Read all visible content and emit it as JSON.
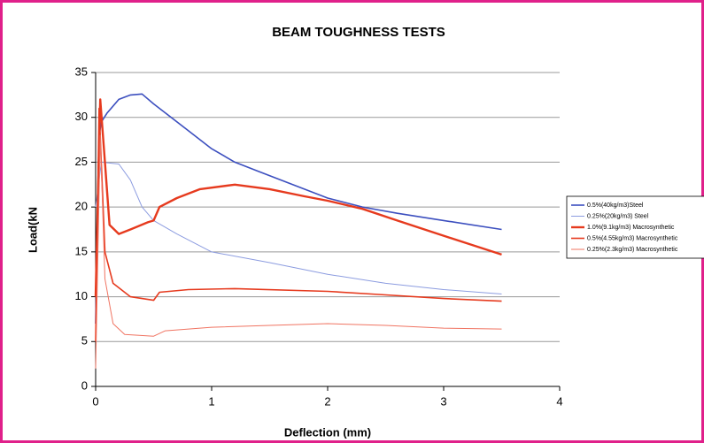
{
  "chart_data": {
    "type": "line",
    "title": "BEAM TOUGHNESS TESTS",
    "x_label": "Deflection (mm)",
    "y_label": "Load(kN",
    "xlim": [
      0,
      4
    ],
    "xticks": [
      0,
      1,
      2,
      3,
      4
    ],
    "ylim": [
      0,
      35
    ],
    "yticks": [
      0,
      5,
      10,
      15,
      20,
      25,
      30,
      35
    ],
    "grid": true,
    "legend": "right",
    "series": [
      {
        "name": "0.5%(40kg/m3)Steel",
        "color": "#3c4fbf",
        "x": [
          0,
          0.03,
          0.05,
          0.1,
          0.2,
          0.3,
          0.4,
          0.5,
          0.6,
          0.8,
          1.0,
          1.2,
          1.4,
          1.6,
          1.8,
          2.0,
          2.3,
          2.6,
          3.0,
          3.5
        ],
        "values": [
          7,
          28,
          29.5,
          30.5,
          32,
          32.5,
          32.6,
          31.5,
          30.5,
          28.5,
          26.5,
          25,
          24,
          23,
          22,
          21,
          20,
          19.3,
          18.5,
          17.5
        ]
      },
      {
        "name": "0.25%(20kg/m3) Steel",
        "color": "#8c9ce0",
        "x": [
          0,
          0.05,
          0.2,
          0.3,
          0.4,
          0.5,
          0.7,
          1.0,
          1.5,
          2.0,
          2.5,
          3.0,
          3.5
        ],
        "values": [
          20,
          25,
          24.8,
          23,
          20,
          18.5,
          17,
          15,
          13.8,
          12.5,
          11.5,
          10.8,
          10.3
        ]
      },
      {
        "name": "1.0%(9.1kg/m3) Macrosynthetic",
        "color": "#e63a1e",
        "x": [
          0,
          0.04,
          0.08,
          0.12,
          0.2,
          0.3,
          0.45,
          0.5,
          0.55,
          0.7,
          0.9,
          1.2,
          1.5,
          1.8,
          2.0,
          2.3,
          2.6,
          3.0,
          3.5
        ],
        "values": [
          10,
          32,
          25,
          18,
          17,
          17.5,
          18.3,
          18.5,
          20,
          21,
          22,
          22.5,
          22,
          21.2,
          20.7,
          19.8,
          18.5,
          16.8,
          14.7
        ]
      },
      {
        "name": "0.5%(4.55kg/m3) Macrosynthetic",
        "color": "#e63a1e",
        "x": [
          0,
          0.03,
          0.08,
          0.15,
          0.3,
          0.5,
          0.55,
          0.8,
          1.2,
          2.0,
          2.5,
          3.0,
          3.5
        ],
        "values": [
          5,
          31,
          15,
          11.5,
          10,
          9.6,
          10.5,
          10.8,
          10.9,
          10.6,
          10.2,
          9.8,
          9.5
        ]
      },
      {
        "name": "0.25%(2.3kg/m3) Macrosynthetic",
        "color": "#f07462",
        "x": [
          0,
          0.04,
          0.08,
          0.15,
          0.25,
          0.5,
          0.6,
          1.0,
          1.5,
          2.0,
          2.5,
          3.0,
          3.5
        ],
        "values": [
          2,
          28,
          12,
          7,
          5.8,
          5.6,
          6.2,
          6.6,
          6.8,
          7,
          6.8,
          6.5,
          6.4
        ]
      }
    ]
  }
}
